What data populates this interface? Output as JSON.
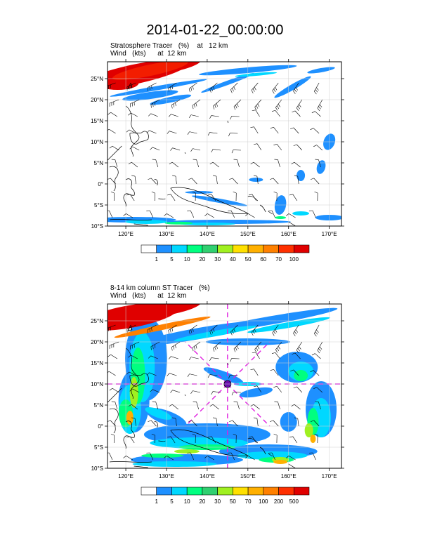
{
  "page": {
    "title": "2014-01-22_00:00:00"
  },
  "panels": [
    {
      "title_line1": "Stratosphere Tracer   (%)    at   12 km",
      "title_line2": "Wind   (kts)      at  12 km",
      "lat_labels": [
        "25°N",
        "20°N",
        "15°N",
        "10°N",
        "5°N",
        "0°",
        "5°S",
        "10°S"
      ],
      "lon_labels": [
        "120°E",
        "130°E",
        "140°E",
        "150°E",
        "160°E",
        "170°E"
      ],
      "colorbar": {
        "labels": [
          "1",
          "5",
          "10",
          "20",
          "30",
          "40",
          "50",
          "60",
          "70",
          "100"
        ],
        "colors": [
          "#ffffff",
          "#1e90ff",
          "#00d8ff",
          "#00ff80",
          "#30d070",
          "#a0f020",
          "#ffe000",
          "#ffb000",
          "#ff8000",
          "#ff3000",
          "#e00000"
        ]
      }
    },
    {
      "title_line1": "8-14 km column ST Tracer   (%)",
      "title_line2": "Wind   (kts)      at  12 km",
      "lat_labels": [
        "25°N",
        "20°N",
        "15°N",
        "10°N",
        "5°N",
        "0°",
        "5°S",
        "10°S"
      ],
      "lon_labels": [
        "120°E",
        "130°E",
        "140°E",
        "150°E",
        "160°E",
        "170°E"
      ],
      "colorbar": {
        "labels": [
          "1",
          "5",
          "10",
          "20",
          "30",
          "50",
          "70",
          "100",
          "200",
          "500"
        ],
        "colors": [
          "#ffffff",
          "#1e90ff",
          "#00d8ff",
          "#00ff80",
          "#30d070",
          "#a0f020",
          "#ffe000",
          "#ffb000",
          "#ff8000",
          "#ff3000",
          "#e00000"
        ]
      }
    }
  ]
}
